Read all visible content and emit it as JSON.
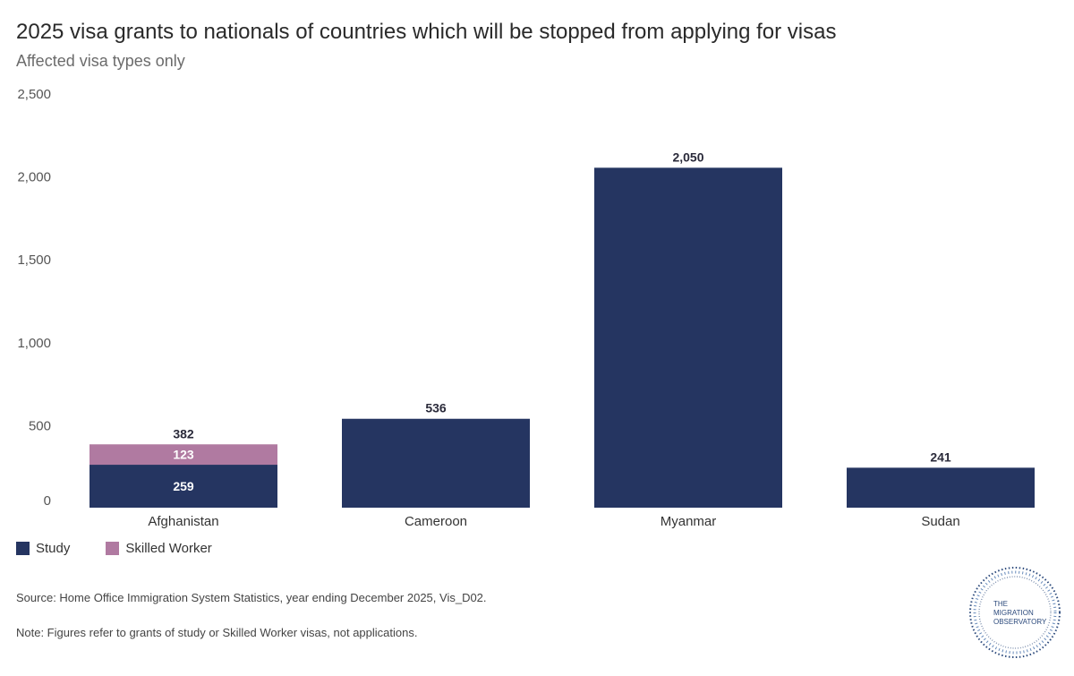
{
  "title": "2025 visa grants to nationals of countries which will be stopped from applying for visas",
  "subtitle": "Affected visa types only",
  "chart_data": {
    "type": "bar",
    "stacked": true,
    "categories": [
      "Afghanistan",
      "Cameroon",
      "Myanmar",
      "Sudan"
    ],
    "series": [
      {
        "name": "Study",
        "color": "#253561",
        "values": [
          259,
          536,
          2050,
          241
        ]
      },
      {
        "name": "Skilled Worker",
        "color": "#b07aa1",
        "values": [
          123,
          0,
          0,
          0
        ]
      }
    ],
    "segment_labels": [
      {
        "category": "Afghanistan",
        "series": "Study",
        "label": "259"
      },
      {
        "category": "Afghanistan",
        "series": "Skilled Worker",
        "label": "123"
      }
    ],
    "totals": [
      "382",
      "536",
      "2,050",
      "241"
    ],
    "y_ticks": [
      0,
      500,
      1000,
      1500,
      2000,
      2500
    ],
    "y_tick_labels": [
      "0",
      "500",
      "1,000",
      "1,500",
      "2,000",
      "2,500"
    ],
    "ylim": [
      0,
      2500
    ],
    "legend_position": "bottom-left"
  },
  "legend": [
    {
      "label": "Study",
      "color": "#253561"
    },
    {
      "label": "Skilled Worker",
      "color": "#b07aa1"
    }
  ],
  "source": "Source: Home Office Immigration System Statistics, year ending December 2025, Vis_D02.",
  "note": "Note: Figures refer to grants of study or Skilled Worker visas, not applications.",
  "logo": {
    "line1": "THE",
    "line2": "MIGRATION",
    "line3": "OBSERVATORY",
    "color": "#2c4a7c"
  }
}
